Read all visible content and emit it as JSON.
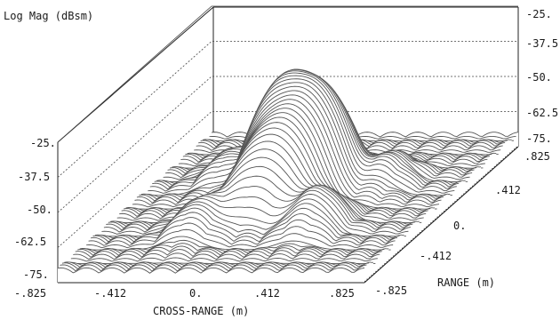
{
  "chart_data": {
    "type": "surface3d",
    "zlabel": "Log Mag  (dBsm)",
    "xlabel": "CROSS-RANGE  (m)",
    "ylabel": "RANGE  (m)",
    "z_ticks": [
      "-25.",
      "-37.5",
      "-50.",
      "-62.5",
      "-75."
    ],
    "x_ticks": [
      "-.825",
      "-.412",
      "0.",
      ".412",
      ".825"
    ],
    "y_ticks": [
      ".825",
      ".412",
      "0.",
      "-.412",
      "-.825"
    ],
    "zlim": [
      -75,
      -25
    ],
    "xlim": [
      -0.825,
      0.825
    ],
    "ylim": [
      -0.825,
      0.825
    ],
    "floor_color": "#5b5b5b",
    "peaks": [
      {
        "x": -0.1,
        "y": 0.2,
        "z": -31
      },
      {
        "x": 0.05,
        "y": 0.15,
        "z": -33
      },
      {
        "x": 0.02,
        "y": -0.05,
        "z": -40
      },
      {
        "x": -0.09,
        "y": -0.1,
        "z": -47
      },
      {
        "x": -0.3,
        "y": -0.35,
        "z": -61
      },
      {
        "x": 0.3,
        "y": -0.3,
        "z": -58
      },
      {
        "x": 0.4,
        "y": 0.25,
        "z": -63
      },
      {
        "x": -0.45,
        "y": 0.3,
        "z": -63
      }
    ]
  }
}
